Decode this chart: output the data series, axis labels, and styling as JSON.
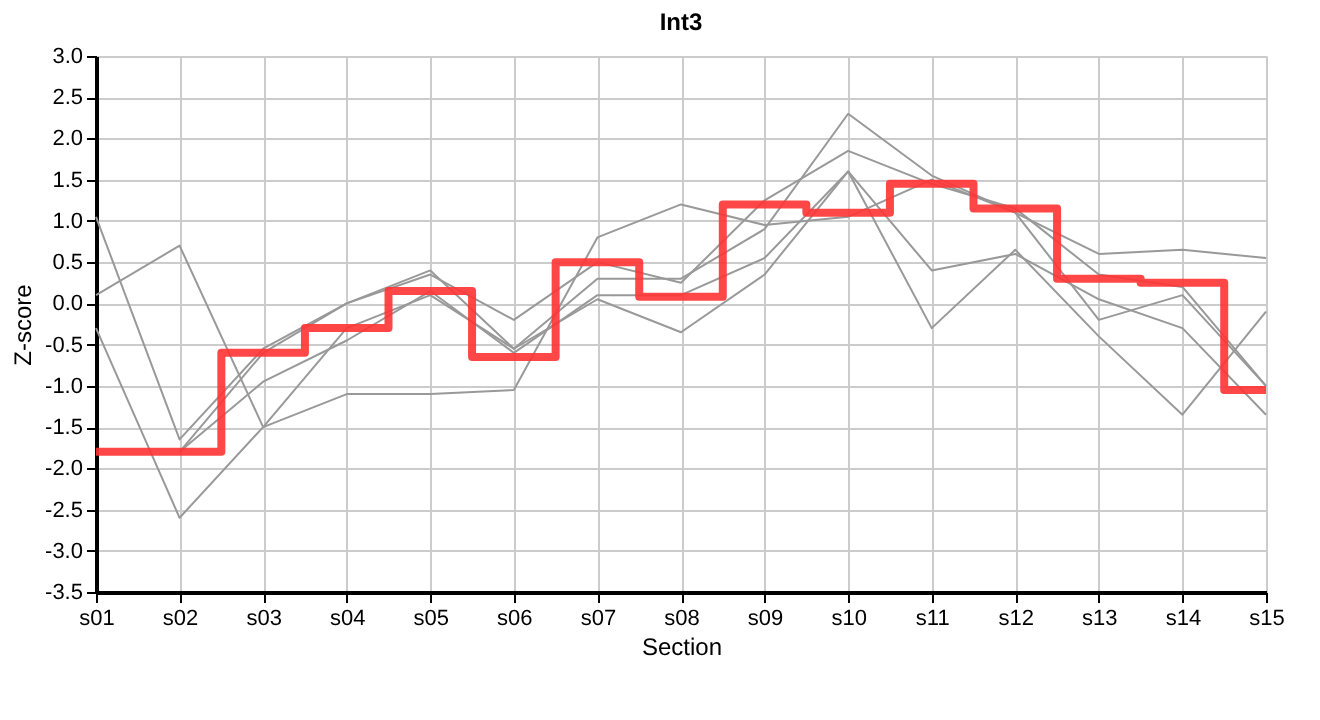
{
  "chart_data": {
    "type": "line",
    "title": "Int3",
    "xlabel": "Section",
    "ylabel": "Z-score",
    "categories": [
      "s01",
      "s02",
      "s03",
      "s04",
      "s05",
      "s06",
      "s07",
      "s08",
      "s09",
      "s10",
      "s11",
      "s12",
      "s13",
      "s14",
      "s15"
    ],
    "series": [
      {
        "color": "#999999",
        "values": [
          1.05,
          -1.65,
          -0.55,
          0.0,
          0.4,
          -0.55,
          0.3,
          0.3,
          0.9,
          2.3,
          1.55,
          1.1,
          -0.2,
          0.1,
          -1.0
        ]
      },
      {
        "color": "#999999",
        "values": [
          0.1,
          0.7,
          -1.5,
          -1.1,
          -1.1,
          -1.05,
          0.8,
          1.2,
          0.95,
          1.05,
          1.5,
          1.1,
          0.6,
          0.65,
          0.55
        ]
      },
      {
        "color": "#999999",
        "values": [
          -0.3,
          -2.6,
          -1.5,
          -0.3,
          0.1,
          -0.55,
          0.05,
          -0.35,
          0.35,
          1.6,
          -0.3,
          0.65,
          -0.4,
          -1.35,
          -0.1
        ]
      },
      {
        "color": "#999999",
        "values": [
          null,
          -1.8,
          -0.95,
          -0.45,
          0.15,
          -0.6,
          0.1,
          0.1,
          0.55,
          1.6,
          0.4,
          0.6,
          0.05,
          -0.3,
          -1.35
        ]
      },
      {
        "color": "#999999",
        "values": [
          null,
          -1.8,
          -0.6,
          0.0,
          0.35,
          -0.2,
          0.5,
          0.25,
          1.25,
          1.85,
          1.45,
          1.15,
          0.35,
          0.2,
          -1.0
        ]
      },
      {
        "type": "step",
        "color": "#ff3333",
        "values": [
          -1.8,
          -1.8,
          -0.6,
          -0.3,
          0.15,
          -0.65,
          0.5,
          0.08,
          1.2,
          1.1,
          1.45,
          1.15,
          0.3,
          0.25,
          -1.05
        ]
      }
    ],
    "ylim": [
      -3.5,
      3.0
    ],
    "yticks": [
      -3.5,
      {
        "value": -3,
        "label": "-3.0"
      },
      -2.5,
      {
        "value": -2,
        "label": "-2.0"
      },
      -1.5,
      {
        "value": -1,
        "label": "-1.0"
      },
      -0.5,
      {
        "value": 0,
        "label": "0.0"
      },
      0.5,
      {
        "value": 1,
        "label": "1.0"
      },
      1.5,
      {
        "value": 2,
        "label": "2.0"
      },
      2.5,
      {
        "value": 3,
        "label": "3.0"
      }
    ],
    "grid": true,
    "legend": false
  }
}
